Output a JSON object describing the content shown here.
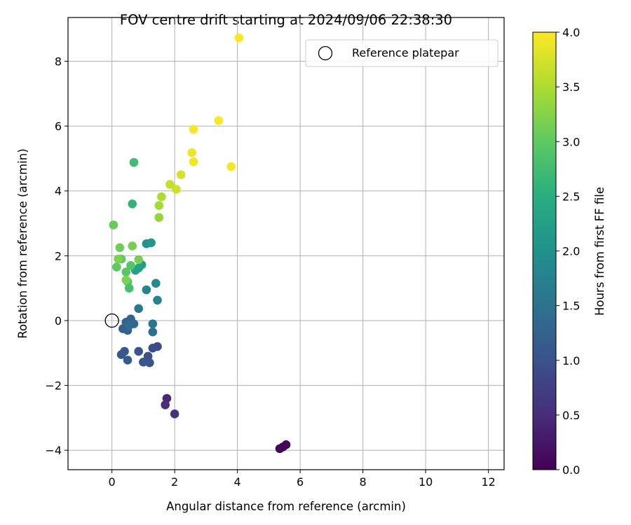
{
  "chart_data": {
    "type": "scatter",
    "title": "FOV centre drift starting at 2024/09/06 22:38:30",
    "xlabel": "Angular distance from reference (arcmin)",
    "ylabel": "Rotation from reference (arcmin)",
    "xlim": [
      -1.4,
      12.5
    ],
    "ylim": [
      -4.6,
      9.35
    ],
    "xticks": [
      0,
      2,
      4,
      6,
      8,
      10,
      12
    ],
    "yticks": [
      -4,
      -2,
      0,
      2,
      4,
      6,
      8
    ],
    "grid": true,
    "legend": {
      "placement": "top-right",
      "entries": [
        "Reference platepar"
      ]
    },
    "reference_point": {
      "x": 0,
      "y": 0,
      "label": "Reference platepar"
    },
    "colorbar": {
      "label": "Hours from first FF file",
      "range": [
        0.0,
        4.0
      ],
      "ticks": [
        "0.0",
        "0.5",
        "1.0",
        "1.5",
        "2.0",
        "2.5",
        "3.0",
        "3.5",
        "4.0"
      ],
      "colormap": "viridis"
    },
    "points": [
      {
        "x": 5.35,
        "y": -3.95,
        "c": 0.02
      },
      {
        "x": 5.45,
        "y": -3.9,
        "c": 0.05
      },
      {
        "x": 5.55,
        "y": -3.83,
        "c": 0.08
      },
      {
        "x": 1.75,
        "y": -2.4,
        "c": 0.45
      },
      {
        "x": 1.7,
        "y": -2.6,
        "c": 0.5
      },
      {
        "x": 2.0,
        "y": -2.88,
        "c": 0.55
      },
      {
        "x": 1.45,
        "y": -0.8,
        "c": 0.9
      },
      {
        "x": 1.3,
        "y": -0.85,
        "c": 0.95
      },
      {
        "x": 1.15,
        "y": -1.1,
        "c": 1.0
      },
      {
        "x": 1.2,
        "y": -1.3,
        "c": 1.0
      },
      {
        "x": 1.0,
        "y": -1.28,
        "c": 1.05
      },
      {
        "x": 0.85,
        "y": -0.95,
        "c": 1.05
      },
      {
        "x": 0.3,
        "y": -1.05,
        "c": 1.1
      },
      {
        "x": 0.4,
        "y": -0.95,
        "c": 1.1
      },
      {
        "x": 0.5,
        "y": -1.22,
        "c": 1.15
      },
      {
        "x": 0.35,
        "y": -0.25,
        "c": 1.2
      },
      {
        "x": 0.5,
        "y": -0.3,
        "c": 1.25
      },
      {
        "x": 0.45,
        "y": -0.05,
        "c": 1.3
      },
      {
        "x": 0.6,
        "y": 0.05,
        "c": 1.3
      },
      {
        "x": 0.7,
        "y": -0.1,
        "c": 1.35
      },
      {
        "x": 0.55,
        "y": -0.15,
        "c": 1.4
      },
      {
        "x": 1.3,
        "y": -0.1,
        "c": 1.55
      },
      {
        "x": 1.3,
        "y": -0.35,
        "c": 1.5
      },
      {
        "x": 0.85,
        "y": 0.37,
        "c": 1.6
      },
      {
        "x": 1.45,
        "y": 0.63,
        "c": 1.75
      },
      {
        "x": 1.1,
        "y": 0.95,
        "c": 1.8
      },
      {
        "x": 1.4,
        "y": 1.15,
        "c": 1.85
      },
      {
        "x": 1.1,
        "y": 2.37,
        "c": 2.05
      },
      {
        "x": 1.25,
        "y": 2.4,
        "c": 2.1
      },
      {
        "x": 0.95,
        "y": 1.72,
        "c": 2.2
      },
      {
        "x": 0.85,
        "y": 1.62,
        "c": 2.25
      },
      {
        "x": 0.75,
        "y": 1.55,
        "c": 2.3
      },
      {
        "x": 0.65,
        "y": 3.6,
        "c": 2.6
      },
      {
        "x": 0.7,
        "y": 4.88,
        "c": 2.75
      },
      {
        "x": 0.55,
        "y": 1.0,
        "c": 2.8
      },
      {
        "x": 0.5,
        "y": 1.2,
        "c": 2.85
      },
      {
        "x": 0.6,
        "y": 1.7,
        "c": 2.9
      },
      {
        "x": 0.45,
        "y": 1.5,
        "c": 2.95
      },
      {
        "x": 0.3,
        "y": 1.9,
        "c": 3.0
      },
      {
        "x": 0.15,
        "y": 1.65,
        "c": 3.0
      },
      {
        "x": 0.05,
        "y": 2.95,
        "c": 3.05
      },
      {
        "x": 0.25,
        "y": 2.25,
        "c": 3.1
      },
      {
        "x": 0.85,
        "y": 1.88,
        "c": 3.15
      },
      {
        "x": 0.65,
        "y": 2.3,
        "c": 3.15
      },
      {
        "x": 0.45,
        "y": 1.25,
        "c": 3.2
      },
      {
        "x": 0.2,
        "y": 1.9,
        "c": 3.2
      },
      {
        "x": 1.5,
        "y": 3.18,
        "c": 3.35
      },
      {
        "x": 1.5,
        "y": 3.55,
        "c": 3.45
      },
      {
        "x": 1.58,
        "y": 3.82,
        "c": 3.5
      },
      {
        "x": 1.85,
        "y": 4.2,
        "c": 3.65
      },
      {
        "x": 2.05,
        "y": 4.05,
        "c": 3.7
      },
      {
        "x": 2.2,
        "y": 4.5,
        "c": 3.75
      },
      {
        "x": 2.55,
        "y": 5.18,
        "c": 3.9
      },
      {
        "x": 2.6,
        "y": 4.9,
        "c": 3.92
      },
      {
        "x": 2.6,
        "y": 5.9,
        "c": 3.95
      },
      {
        "x": 3.8,
        "y": 4.75,
        "c": 3.97
      },
      {
        "x": 3.4,
        "y": 6.17,
        "c": 3.98
      },
      {
        "x": 4.05,
        "y": 8.72,
        "c": 4.0
      }
    ]
  }
}
